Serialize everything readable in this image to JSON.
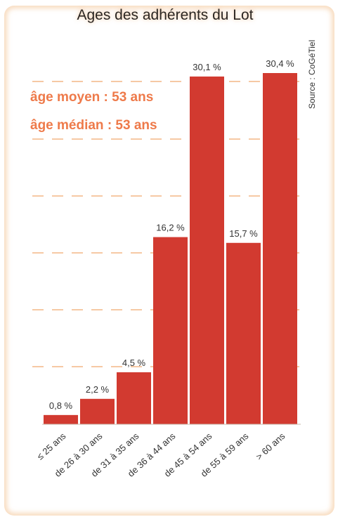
{
  "title": "Ages des adhérents du Lot",
  "source": "Source : CoGéTiel",
  "stats": {
    "mean": "âge moyen : 53 ans",
    "median": "âge médian : 53 ans"
  },
  "colors": {
    "bar": "#d23a30",
    "grid": "#f6c9a4",
    "text": "#333333"
  },
  "chart_data": {
    "type": "bar",
    "title": "Ages des adhérents du Lot",
    "categories": [
      "≤ 25 ans",
      "de 26 à 30 ans",
      "de 31 à 35 ans",
      "de 36 à 44 ans",
      "de 45 à 54 ans",
      "de 55 à 59 ans",
      "> 60 ans"
    ],
    "values": [
      0.8,
      2.2,
      4.5,
      16.2,
      30.1,
      15.7,
      30.4
    ],
    "value_labels": [
      "0,8 %",
      "2,2 %",
      "4,5 %",
      "16,2 %",
      "30,1 %",
      "15,7 %",
      "30,4 %"
    ],
    "unit": "%",
    "ylim": [
      0,
      30.4
    ],
    "grid": true,
    "legend": "none"
  }
}
